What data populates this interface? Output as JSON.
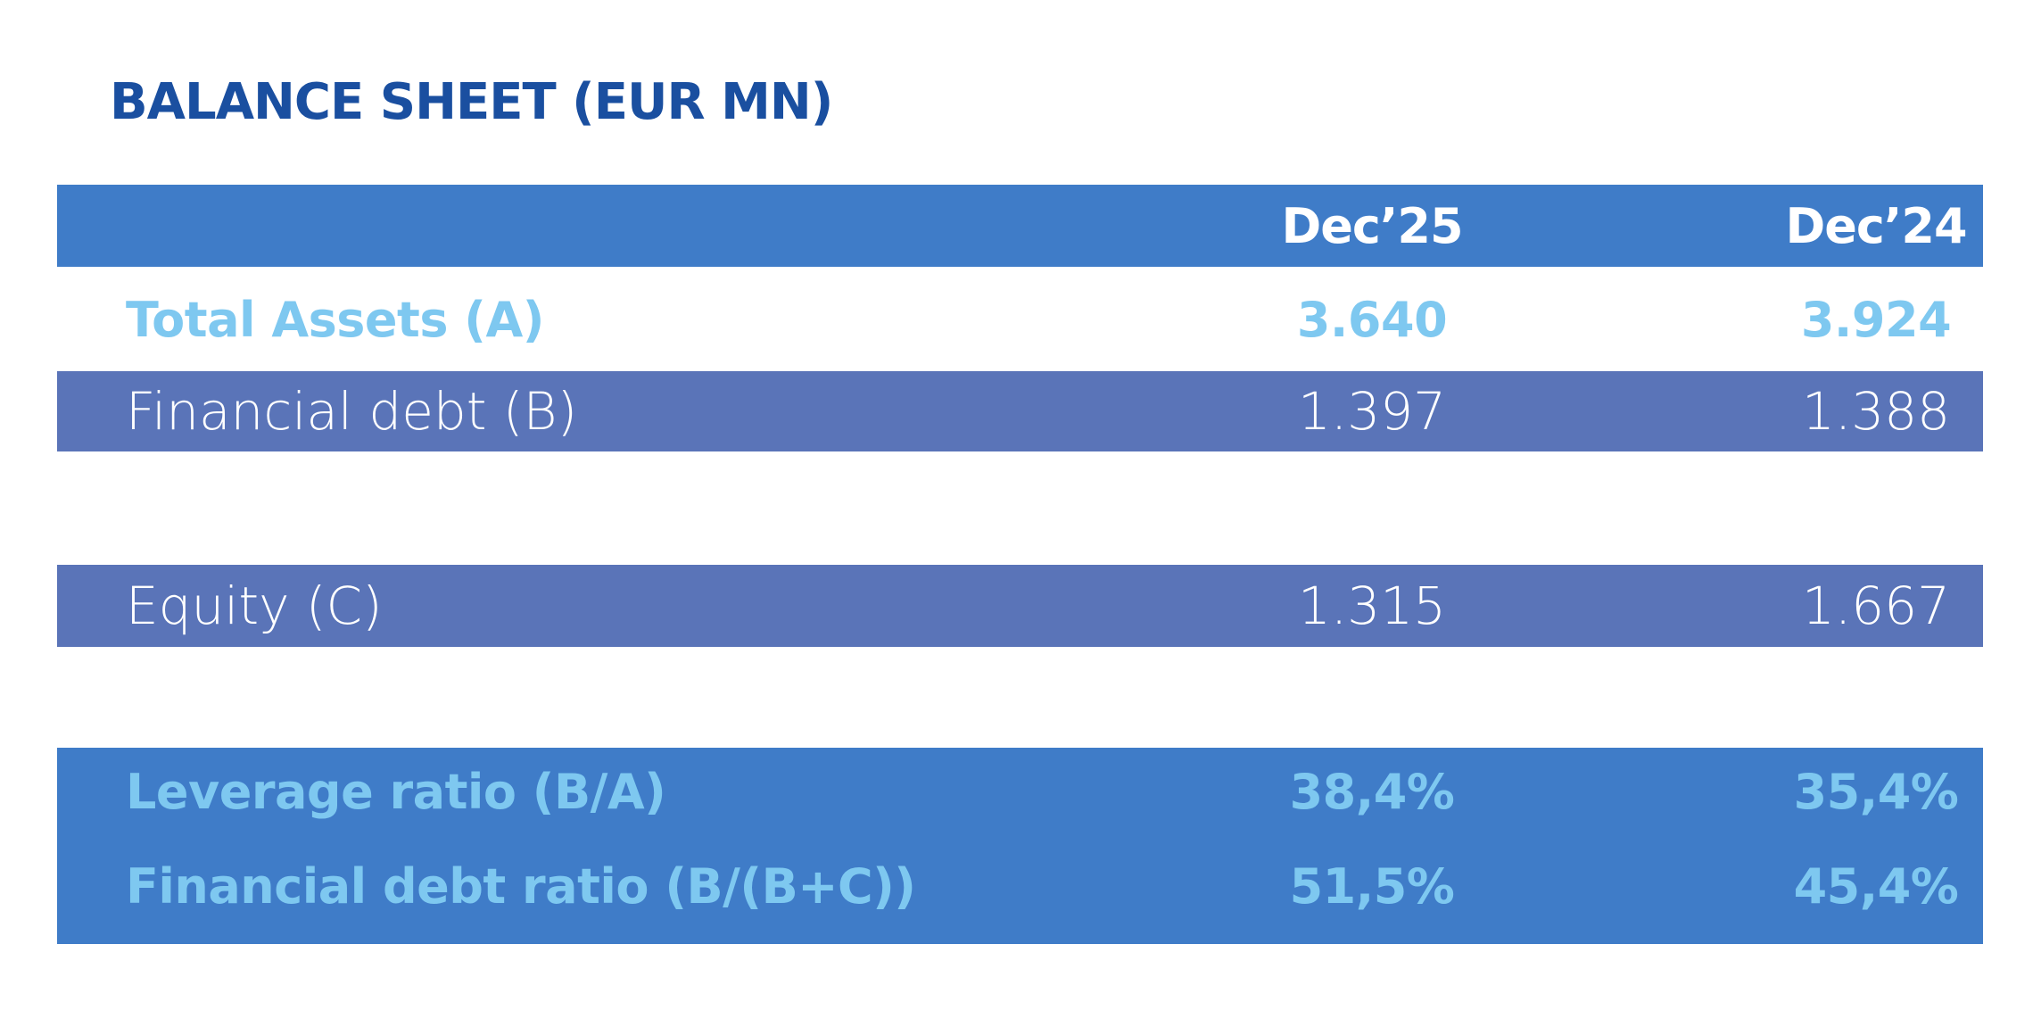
{
  "header": {
    "title": "BALANCE SHEET (EUR MN)"
  },
  "table": {
    "columns": [
      "Dec’25",
      "Dec’24"
    ],
    "rows": [
      {
        "label": "Total Assets (A)",
        "values": [
          "3.640",
          "3.924"
        ]
      },
      {
        "label": "Financial debt (B)",
        "values": [
          "1.397",
          "1.388"
        ]
      },
      {
        "label": "Equity (C)",
        "values": [
          "1.315",
          "1.667"
        ]
      },
      {
        "label": "Leverage ratio (B/A)",
        "values": [
          "38,4%",
          "35,4%"
        ]
      },
      {
        "label": "Financial debt ratio (B/(B+C))",
        "values": [
          "51,5%",
          "45,4%"
        ]
      }
    ]
  }
}
